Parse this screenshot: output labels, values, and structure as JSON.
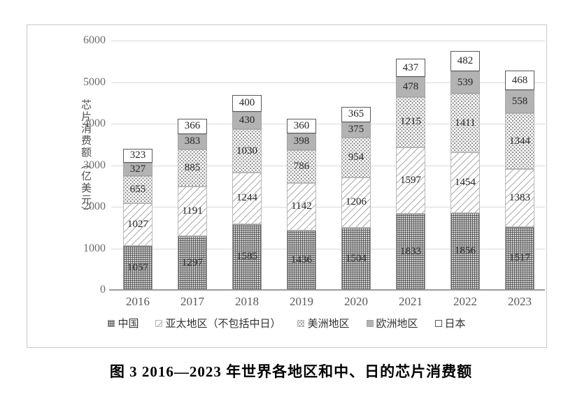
{
  "figure": {
    "caption": "图 3  2016—2023 年世界各地区和中、日的芯片消费额"
  },
  "chart_data": {
    "type": "bar",
    "stacked": true,
    "y_axis_title": "芯片消费额（亿美元）",
    "ylim": [
      0,
      6000
    ],
    "yticks": [
      0,
      1000,
      2000,
      3000,
      4000,
      5000,
      6000
    ],
    "grid": true,
    "legend_position": "bottom",
    "categories": [
      "2016",
      "2017",
      "2018",
      "2019",
      "2020",
      "2021",
      "2022",
      "2023"
    ],
    "series": [
      {
        "name": "中国",
        "pattern": "grid",
        "values": [
          1057,
          1297,
          1585,
          1436,
          1504,
          1833,
          1856,
          1517
        ]
      },
      {
        "name": "亚太地区（不包括中日）",
        "pattern": "diagonal-hatch",
        "values": [
          1027,
          1191,
          1244,
          1142,
          1206,
          1597,
          1454,
          1383
        ]
      },
      {
        "name": "美洲地区",
        "pattern": "dots",
        "values": [
          655,
          885,
          1030,
          786,
          954,
          1215,
          1411,
          1344
        ]
      },
      {
        "name": "欧洲地区",
        "pattern": "solid-gray",
        "values": [
          327,
          383,
          430,
          398,
          375,
          478,
          539,
          558
        ]
      },
      {
        "name": "日本",
        "pattern": "white-outline",
        "values": [
          323,
          366,
          400,
          360,
          365,
          437,
          482,
          468
        ]
      }
    ]
  },
  "palette": {
    "europe_gray": "#b3b3b3",
    "pattern_line_gray": "#ababab",
    "japan_border": "#595959",
    "gridline": "#d9d9d9",
    "axis_text": "#595959"
  }
}
